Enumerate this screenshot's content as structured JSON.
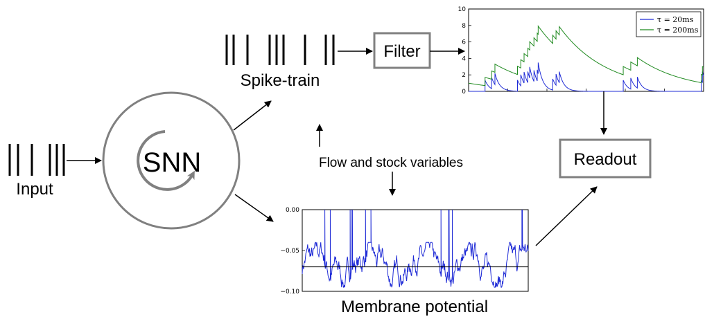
{
  "diagram": {
    "nodes": {
      "input": {
        "label": "Input"
      },
      "snn": {
        "label": "SNN"
      },
      "spike_train": {
        "label": "Spike-train"
      },
      "filter": {
        "label": "Filter"
      },
      "readout": {
        "label": "Readout"
      },
      "flow_stock": {
        "label": "Flow and stock variables"
      },
      "membrane": {
        "label": "Membrane potential"
      }
    },
    "edges": [
      {
        "from": "input",
        "to": "snn"
      },
      {
        "from": "snn",
        "to": "spike_train"
      },
      {
        "from": "snn",
        "to": "membrane"
      },
      {
        "from": "spike_train",
        "to": "filter"
      },
      {
        "from": "filter",
        "to": "filtered_plot"
      },
      {
        "from": "filtered_plot",
        "to": "readout"
      },
      {
        "from": "membrane",
        "to": "readout"
      },
      {
        "from": "flow_stock",
        "to": "spike_train"
      },
      {
        "from": "flow_stock",
        "to": "membrane"
      }
    ],
    "colors": {
      "box_border": "#808080",
      "circle": "#808080",
      "arrow": "#000000",
      "tau20": "#1f2bd6",
      "tau200": "#1f8a1f"
    }
  },
  "chart_data": [
    {
      "id": "filtered",
      "type": "line",
      "ylim": [
        0,
        10
      ],
      "xlim": [
        0,
        1000
      ],
      "yticks": [
        "0",
        "2",
        "4",
        "6",
        "8",
        "10"
      ],
      "legend_position": "top-right",
      "series": [
        {
          "name": "τ =  20ms",
          "color": "#1f2bd6",
          "tau": 20
        },
        {
          "name": "τ = 200ms",
          "color": "#1f8a1f",
          "tau": 200
        }
      ],
      "spike_times": [
        70,
        98,
        112,
        208,
        222,
        236,
        252,
        260,
        278,
        292,
        296,
        358,
        372,
        386,
        658,
        690,
        718,
        990,
        995
      ]
    },
    {
      "id": "membrane",
      "type": "line",
      "ylim": [
        -0.1,
        0.0
      ],
      "xlim": [
        0,
        1000
      ],
      "yticks": [
        "0.00",
        "−0.05",
        "−0.10"
      ],
      "threshold": -0.07,
      "series": [
        {
          "name": "",
          "color": "#1f2bd6"
        }
      ],
      "spike_times": [
        100,
        125,
        212,
        220,
        223,
        280,
        305,
        615,
        648,
        650,
        665,
        972,
        975
      ]
    }
  ]
}
